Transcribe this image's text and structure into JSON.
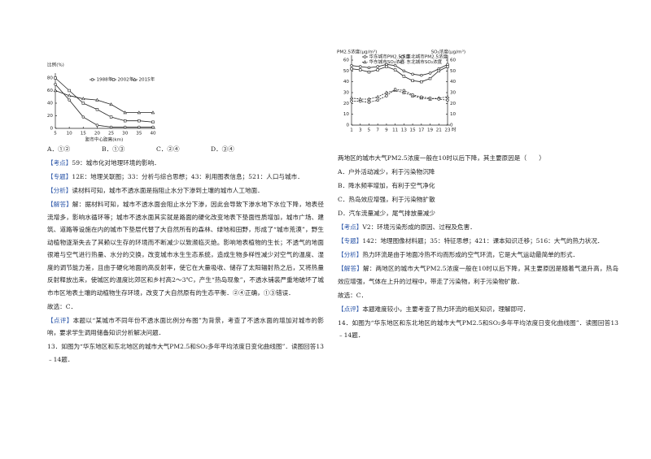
{
  "left": {
    "figure": {
      "type": "line",
      "y_label": "比例(%)",
      "x_label": "距市中心距离(km)",
      "legend": "upper right",
      "x": [
        5,
        10,
        15,
        20,
        25,
        30,
        35,
        40
      ],
      "xlim": [
        5,
        40
      ],
      "xticks": [
        5,
        10,
        15,
        20,
        25,
        30,
        35,
        40
      ],
      "ylim": [
        0,
        80
      ],
      "yticks": [
        0,
        20,
        40,
        60,
        80
      ],
      "series": [
        {
          "name": "1988年",
          "color": "#222222",
          "marker": "circle",
          "values": [
            70,
            45,
            18,
            5,
            2,
            2,
            2,
            2
          ]
        },
        {
          "name": "2002年",
          "color": "#222222",
          "marker": "square",
          "values": [
            80,
            60,
            40,
            30,
            18,
            12,
            12,
            10
          ]
        },
        {
          "name": "2015年",
          "color": "#222222",
          "marker": "triangle",
          "values": [
            60,
            52,
            47,
            45,
            38,
            25,
            25,
            25
          ]
        }
      ]
    },
    "options": [
      "A．①②",
      "B．①③",
      "C．②④",
      "D．③④"
    ],
    "blocks": [
      {
        "tag": "【考点】",
        "text": "59：城市化对地理环境的影响．"
      },
      {
        "tag": "【专题】",
        "text": "12E：地理关联图；33：分析与综合思想；43：利用图表信息；521：人口与城市．"
      },
      {
        "tag": "【分析】",
        "text": "读材料可知，城市不透水面是指阻止水分下渗到土壤的城市人工地面．"
      },
      {
        "tag": "【解答】",
        "text": "解：据材料可知，城市不透水面会阻止水分下渗，因此会导致下渗水地下水位下降，地表径流增多，影响水循环等；城市不透水面其实就是路面的硬化改变地表下垫面性质增加，城市广场、建筑、道路等设施在内的城市下垫层代替了大自然所有的森林、绿地和田野，形成了“城市荒漠”，野生动植物逐渐失去了其赖以生存的环境而不断减少以致濒临灭绝。影响地表植物的生长；不透气的地面很难与空气进行热量、水分的交换，改变城市水生生态系统，造成生物多样性减少对空气的温度、湿度的调节能力差，且由于硬化地面的高反射率，使它在大量吸收、储存了太阳辐射热之后，又将热量反射释放出来，使城区的温度比郊区和乡村高2～3℃，产生“热岛现象”，不透水铺装严重地破坏了城市市区地表土壤的动植物生存环境，改变了大自然原有的生态平衡．②④正确，①③错误．"
      },
      {
        "text": "故选：C．"
      },
      {
        "tag": "【点评】",
        "text": "本题以“某城市不同年份不透水面比例分布图”为背景，考查了不透水面的增加对城市的影响，要求学生调用储备知识分析解决问题．"
      },
      {
        "text": "13．如图为“华东地区和东北地区的城市大气PM2.5和SO₂多年平均浓度日变化曲线图”．读图回答13﹣14题．"
      }
    ]
  },
  "right": {
    "figure": {
      "type": "line",
      "y_label": "PM2.5浓度(μg/m³)",
      "y2_label": "SO₂浓度(μg/m³)",
      "x_label": "时",
      "legend": "upper center",
      "x": [
        1,
        3,
        5,
        7,
        9,
        11,
        13,
        15,
        17,
        19,
        21,
        23
      ],
      "xlim": [
        1,
        23
      ],
      "xticks": [
        1,
        3,
        5,
        7,
        9,
        11,
        13,
        15,
        17,
        19,
        21,
        23
      ],
      "ylim": [
        0,
        60
      ],
      "yticks": [
        0,
        10,
        20,
        30,
        40,
        50,
        60
      ],
      "y2lim": [
        0,
        60
      ],
      "y2ticks": [
        0,
        10,
        20,
        30,
        40,
        50,
        60
      ],
      "series": [
        {
          "name": "华东城市PM2.5浓度",
          "color": "#222222",
          "marker": "circle",
          "values": [
            55,
            54,
            53,
            54,
            56,
            55,
            50,
            47,
            46,
            48,
            52,
            56
          ]
        },
        {
          "name": "东北城市PM2.5浓度",
          "color": "#222222",
          "marker": "square",
          "values": [
            52,
            51,
            49,
            51,
            54,
            51,
            45,
            41,
            40,
            43,
            50,
            54
          ]
        },
        {
          "name": "华东城市SO₂浓度",
          "color": "#222222",
          "marker": "triangle",
          "axis": "y2",
          "values": [
            25,
            24,
            24,
            26,
            30,
            32,
            30,
            27,
            25,
            24,
            25,
            26
          ]
        },
        {
          "name": "东北城市SO₂浓度",
          "color": "#222222",
          "marker": "circle",
          "axis": "y2",
          "values": [
            22,
            22,
            21,
            23,
            27,
            33,
            32,
            28,
            26,
            25,
            24,
            23
          ]
        }
      ]
    },
    "stem": "两地区的城市大气PM2.5浓度一般在10时以后下降，其主要原因是（　　）",
    "options": [
      "A．户外活动减少，利于污染物沉降",
      "B．降水频率增加，有利于空气净化",
      "C．热岛效应增强，利于污染物扩散",
      "D．汽车流量减少，尾气排放量减少"
    ],
    "blocks": [
      {
        "tag": "【考点】",
        "text": "V2：环境污染形成的原因、过程及危害．"
      },
      {
        "tag": "【专题】",
        "text": "142：地理图像材料题；35：特征思想；421：课本知识迁移；516：大气的热力状况．"
      },
      {
        "tag": "【分析】",
        "text": "热力环流是由于地面冷热不均而形成的空气环流，它是大气运动最简单的形式．"
      },
      {
        "tag": "【解答】",
        "text": "解：两地区的城市大气PM2.5浓度一般在10时以后下降，其主要原因是随着气温升高，热岛效应增强，气体在上升的过程中，带走了污染物，利于污染物扩散．"
      },
      {
        "text": "故选：C．"
      },
      {
        "tag": "【点评】",
        "text": "本题难度较小，主要考查了热力环流的相关知识，理解即可．"
      },
      {
        "text": "14．如图为“华东地区和东北地区的城市大气PM2.5和SO₂多年平均浓度日变化曲线图”．读图回答13﹣14题．"
      }
    ]
  }
}
